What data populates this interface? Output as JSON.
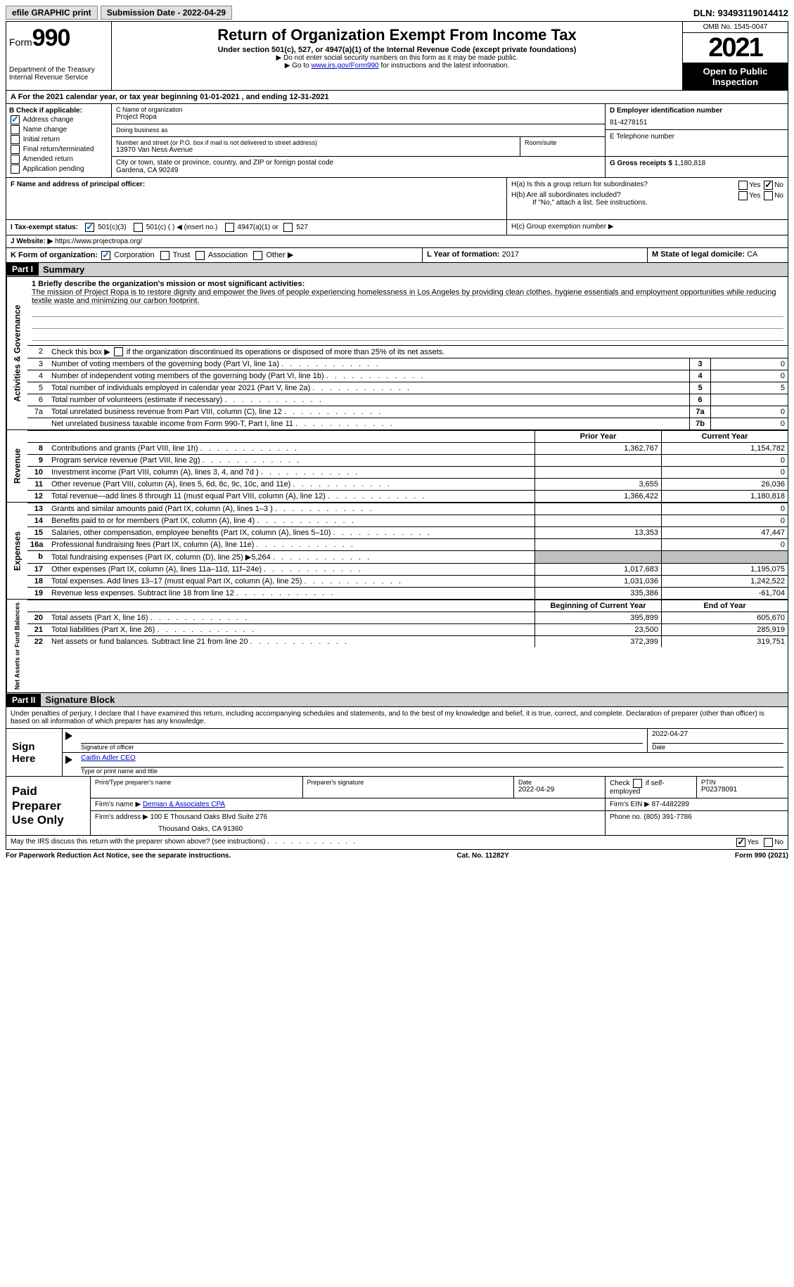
{
  "topbar": {
    "efile": "efile GRAPHIC print",
    "sub_label": "Submission Date - 2022-04-29",
    "dln": "DLN: 93493119014412"
  },
  "header": {
    "form_word": "Form",
    "form_num": "990",
    "dept": "Department of the Treasury",
    "irs": "Internal Revenue Service",
    "title": "Return of Organization Exempt From Income Tax",
    "subtitle": "Under section 501(c), 527, or 4947(a)(1) of the Internal Revenue Code (except private foundations)",
    "note1": "▶ Do not enter social security numbers on this form as it may be made public.",
    "note2_pre": "▶ Go to ",
    "note2_link": "www.irs.gov/Form990",
    "note2_post": " for instructions and the latest information.",
    "omb": "OMB No. 1545-0047",
    "year": "2021",
    "inspect": "Open to Public Inspection"
  },
  "period": {
    "line_pre": "A For the 2021 calendar year, or tax year beginning ",
    "begin": "01-01-2021",
    "mid": " , and ending ",
    "end": "12-31-2021"
  },
  "boxB": {
    "label": "B Check if applicable:",
    "addr_change": "Address change",
    "name_change": "Name change",
    "initial": "Initial return",
    "final": "Final return/terminated",
    "amended": "Amended return",
    "app_pending": "Application pending"
  },
  "boxC": {
    "name_label": "C Name of organization",
    "name": "Project Ropa",
    "dba_label": "Doing business as",
    "addr_label": "Number and street (or P.O. box if mail is not delivered to street address)",
    "room_label": "Room/suite",
    "addr": "13970 Van Ness Avenue",
    "city_label": "City or town, state or province, country, and ZIP or foreign postal code",
    "city": "Gardena, CA  90249"
  },
  "boxD": {
    "label": "D Employer identification number",
    "ein": "81-4278151"
  },
  "boxE": {
    "label": "E Telephone number"
  },
  "boxG": {
    "label": "G Gross receipts $",
    "val": "1,180,818"
  },
  "boxF": {
    "label": "F Name and address of principal officer:"
  },
  "boxH": {
    "ha": "H(a)  Is this a group return for subordinates?",
    "hb": "H(b)  Are all subordinates included?",
    "hb_note": "If \"No,\" attach a list. See instructions.",
    "hc": "H(c)  Group exemption number ▶",
    "yes": "Yes",
    "no": "No"
  },
  "boxI": {
    "label": "I  Tax-exempt status:",
    "c3": "501(c)(3)",
    "c": "501(c) (   ) ◀ (insert no.)",
    "a1": "4947(a)(1) or",
    "s527": "527"
  },
  "boxJ": {
    "label": "J  Website: ▶",
    "url": " https://www.projectropa.org/"
  },
  "boxK": {
    "label": "K Form of organization:",
    "corp": "Corporation",
    "trust": "Trust",
    "assoc": "Association",
    "other": "Other ▶"
  },
  "boxL": {
    "label": "L Year of formation:",
    "val": "2017"
  },
  "boxM": {
    "label": "M State of legal domicile:",
    "val": "CA"
  },
  "parts": {
    "p1": "Part I",
    "p1_title": "Summary",
    "p2": "Part II",
    "p2_title": "Signature Block"
  },
  "summary": {
    "l1_label": "1  Briefly describe the organization's mission or most significant activities:",
    "mission": "The mission of Project Ropa is to restore dignity and empower the lives of people experiencing homelessness in Los Angeles by providing clean clothes, hygiene essentials and employment opportunities while reducing textile waste and minimizing our carbon footprint.",
    "l2": "Check this box ▶      if the organization discontinued its operations or disposed of more than 25% of its net assets.",
    "rows_ag": [
      {
        "n": "3",
        "d": "Number of voting members of the governing body (Part VI, line 1a)",
        "box": "3",
        "v": "0"
      },
      {
        "n": "4",
        "d": "Number of independent voting members of the governing body (Part VI, line 1b)",
        "box": "4",
        "v": "0"
      },
      {
        "n": "5",
        "d": "Total number of individuals employed in calendar year 2021 (Part V, line 2a)",
        "box": "5",
        "v": "5"
      },
      {
        "n": "6",
        "d": "Total number of volunteers (estimate if necessary)",
        "box": "6",
        "v": ""
      },
      {
        "n": "7a",
        "d": "Total unrelated business revenue from Part VIII, column (C), line 12",
        "box": "7a",
        "v": "0"
      },
      {
        "n": "",
        "d": "Net unrelated business taxable income from Form 990-T, Part I, line 11",
        "box": "7b",
        "v": "0"
      }
    ],
    "col_prior": "Prior Year",
    "col_curr": "Current Year",
    "rev": [
      {
        "n": "8",
        "d": "Contributions and grants (Part VIII, line 1h)",
        "p": "1,362,767",
        "c": "1,154,782"
      },
      {
        "n": "9",
        "d": "Program service revenue (Part VIII, line 2g)",
        "p": "",
        "c": "0"
      },
      {
        "n": "10",
        "d": "Investment income (Part VIII, column (A), lines 3, 4, and 7d )",
        "p": "",
        "c": "0"
      },
      {
        "n": "11",
        "d": "Other revenue (Part VIII, column (A), lines 5, 6d, 8c, 9c, 10c, and 11e)",
        "p": "3,655",
        "c": "26,036"
      },
      {
        "n": "12",
        "d": "Total revenue—add lines 8 through 11 (must equal Part VIII, column (A), line 12)",
        "p": "1,366,422",
        "c": "1,180,818"
      }
    ],
    "exp": [
      {
        "n": "13",
        "d": "Grants and similar amounts paid (Part IX, column (A), lines 1–3 )",
        "p": "",
        "c": "0"
      },
      {
        "n": "14",
        "d": "Benefits paid to or for members (Part IX, column (A), line 4)",
        "p": "",
        "c": "0"
      },
      {
        "n": "15",
        "d": "Salaries, other compensation, employee benefits (Part IX, column (A), lines 5–10)",
        "p": "13,353",
        "c": "47,447"
      },
      {
        "n": "16a",
        "d": "Professional fundraising fees (Part IX, column (A), line 11e)",
        "p": "",
        "c": "0"
      },
      {
        "n": "b",
        "d": "Total fundraising expenses (Part IX, column (D), line 25) ▶5,264",
        "p": "shaded",
        "c": "shaded"
      },
      {
        "n": "17",
        "d": "Other expenses (Part IX, column (A), lines 11a–11d, 11f–24e)",
        "p": "1,017,683",
        "c": "1,195,075"
      },
      {
        "n": "18",
        "d": "Total expenses. Add lines 13–17 (must equal Part IX, column (A), line 25)",
        "p": "1,031,036",
        "c": "1,242,522"
      },
      {
        "n": "19",
        "d": "Revenue less expenses. Subtract line 18 from line 12",
        "p": "335,386",
        "c": "-61,704"
      }
    ],
    "col_begin": "Beginning of Current Year",
    "col_end": "End of Year",
    "net": [
      {
        "n": "20",
        "d": "Total assets (Part X, line 16)",
        "p": "395,899",
        "c": "605,670"
      },
      {
        "n": "21",
        "d": "Total liabilities (Part X, line 26)",
        "p": "23,500",
        "c": "285,919"
      },
      {
        "n": "22",
        "d": "Net assets or fund balances. Subtract line 21 from line 20",
        "p": "372,399",
        "c": "319,751"
      }
    ],
    "vlabels": {
      "ag": "Activities & Governance",
      "rev": "Revenue",
      "exp": "Expenses",
      "net": "Net Assets or Fund Balances"
    }
  },
  "sig": {
    "decl": "Under penalties of perjury, I declare that I have examined this return, including accompanying schedules and statements, and to the best of my knowledge and belief, it is true, correct, and complete. Declaration of preparer (other than officer) is based on all information of which preparer has any knowledge.",
    "sign_here": "Sign Here",
    "sig_officer": "Signature of officer",
    "date": "Date",
    "sig_date": "2022-04-27",
    "name_title": "Caitlin Adler CEO",
    "type_name": "Type or print name and title",
    "paid": "Paid Preparer Use Only",
    "print_name": "Print/Type preparer's name",
    "prep_sig": "Preparer's signature",
    "prep_date_lbl": "Date",
    "prep_date": "2022-04-29",
    "check_self": "Check        if self-employed",
    "ptin_lbl": "PTIN",
    "ptin": "P02378091",
    "firm_name_lbl": "Firm's name   ▶",
    "firm_name": "Demian & Associates CPA",
    "firm_ein_lbl": "Firm's EIN ▶",
    "firm_ein": "87-4482289",
    "firm_addr_lbl": "Firm's address ▶",
    "firm_addr1": "100 E Thousand Oaks Blvd Suite 276",
    "firm_addr2": "Thousand Oaks, CA  91360",
    "phone_lbl": "Phone no.",
    "phone": "(805) 391-7786",
    "discuss": "May the IRS discuss this return with the preparer shown above? (see instructions)",
    "yes": "Yes",
    "no": "No"
  },
  "footer": {
    "pra": "For Paperwork Reduction Act Notice, see the separate instructions.",
    "cat": "Cat. No. 11282Y",
    "form": "Form 990 (2021)"
  }
}
